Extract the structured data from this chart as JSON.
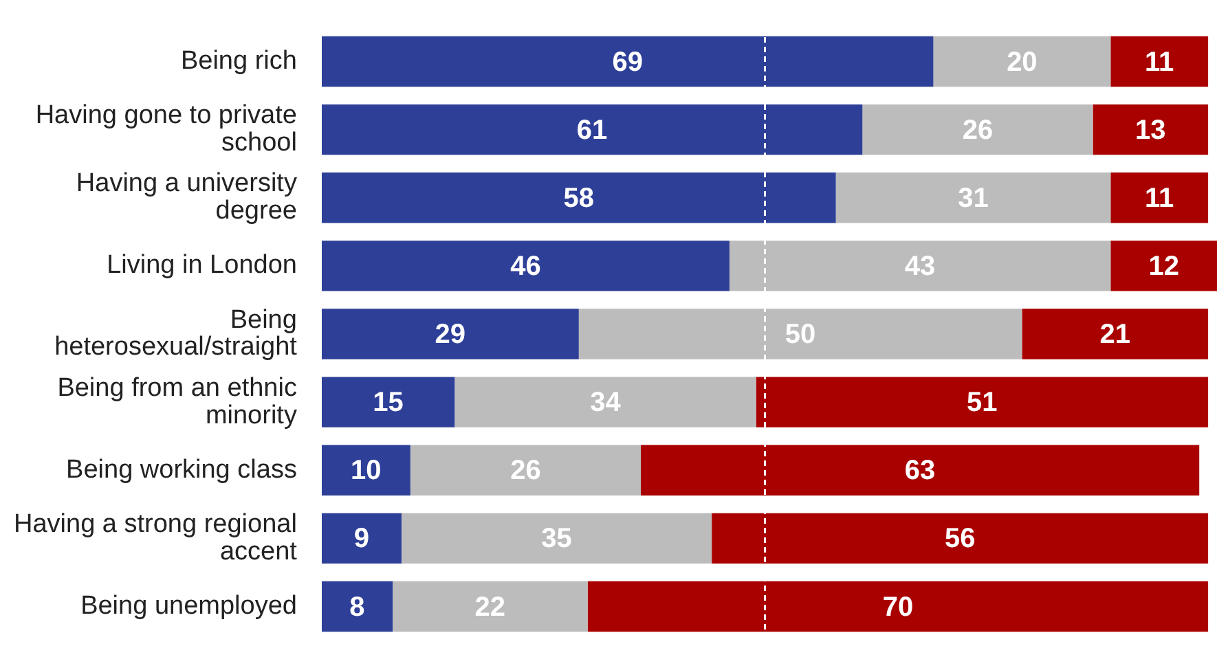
{
  "chart_data": {
    "type": "bar",
    "orientation": "horizontal",
    "stacked": true,
    "data_labels": true,
    "tick_labels": "y",
    "categories": [
      "Being rich",
      "Having gone to private school",
      "Having a university degree",
      "Living in London",
      "Being heterosexual/straight",
      "Being from an ethnic minority",
      "Being working class",
      "Having a strong regional accent",
      "Being unemployed"
    ],
    "xlim": [
      0,
      101
    ],
    "series": [
      {
        "color": "#2e3f97",
        "values": [
          69,
          61,
          58,
          46,
          29,
          15,
          10,
          9,
          8
        ]
      },
      {
        "color": "#bcbcbc",
        "values": [
          20,
          26,
          31,
          43,
          50,
          34,
          26,
          35,
          22
        ]
      },
      {
        "color": "#a90000",
        "values": [
          11,
          13,
          11,
          12,
          21,
          51,
          63,
          56,
          70
        ]
      }
    ],
    "ref_lines": [
      {
        "axis": "x",
        "value": 50,
        "color": "#ffffff",
        "line_style": "dashed"
      }
    ]
  }
}
